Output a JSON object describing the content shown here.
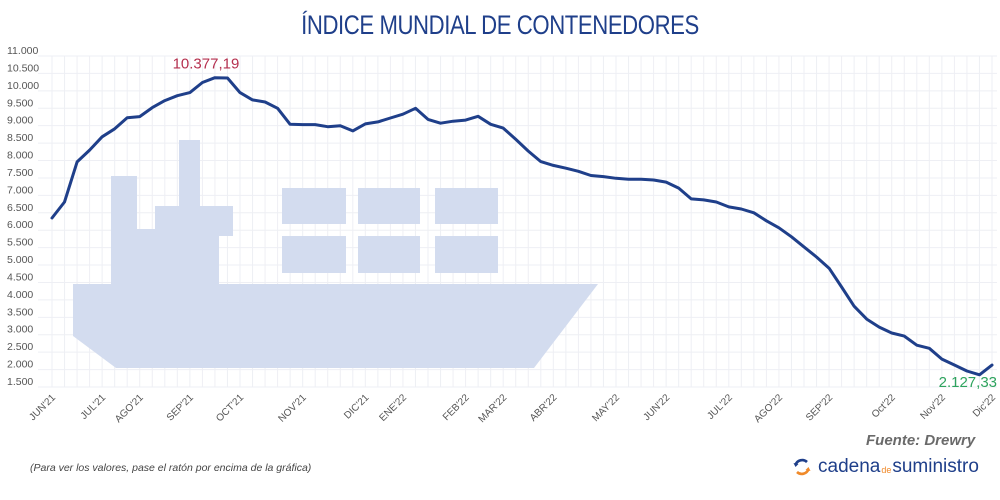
{
  "header": {
    "title": "ÍNDICE MUNDIAL DE CONTENEDORES"
  },
  "footer": {
    "source": "Fuente: Drewry",
    "note": "(Para ver los valores, pase el ratón por encima de la gráfica)",
    "logo": {
      "part1": "cadena",
      "part2": "de",
      "part3": "suministro",
      "icon": "refresh-arrows-icon"
    }
  },
  "colors": {
    "line": "#1f3f8a",
    "ship": "#d3dcef",
    "max_label": "#b5304f",
    "min_label": "#2ea35e",
    "grid": "#eeeff4"
  },
  "chart_data": {
    "type": "line",
    "title": "ÍNDICE MUNDIAL DE CONTENEDORES",
    "xlabel": "",
    "ylabel": "",
    "ylim": [
      1500,
      11000
    ],
    "yticks": [
      1500,
      2000,
      2500,
      3000,
      3500,
      4000,
      4500,
      5000,
      5500,
      6000,
      6500,
      7000,
      7500,
      8000,
      8500,
      9000,
      9500,
      10000,
      10500,
      11000
    ],
    "ytick_labels": [
      "1.500",
      "2.000",
      "2.500",
      "3.000",
      "3.500",
      "4.000",
      "4.500",
      "5.000",
      "5.500",
      "6.000",
      "6.500",
      "7.000",
      "7.500",
      "8.000",
      "8.500",
      "9.000",
      "9.500",
      "10.000",
      "10.500",
      "11.000"
    ],
    "grid": true,
    "xticks": [
      {
        "label": "JUN'21",
        "index": 0
      },
      {
        "label": "JUL'21",
        "index": 4
      },
      {
        "label": "AGO'21",
        "index": 7
      },
      {
        "label": "SEP'21",
        "index": 11
      },
      {
        "label": "OCT'21",
        "index": 15
      },
      {
        "label": "NOV'21",
        "index": 20
      },
      {
        "label": "DIC'21",
        "index": 25
      },
      {
        "label": "ENE'22",
        "index": 28
      },
      {
        "label": "FEB'22",
        "index": 33
      },
      {
        "label": "MAR'22",
        "index": 36
      },
      {
        "label": "ABR'22",
        "index": 40
      },
      {
        "label": "MAY'22",
        "index": 45
      },
      {
        "label": "JUN'22",
        "index": 49
      },
      {
        "label": "JUL'22",
        "index": 54
      },
      {
        "label": "AGO'22",
        "index": 58
      },
      {
        "label": "SEP'22",
        "index": 62
      },
      {
        "label": "Oct'22",
        "index": 67
      },
      {
        "label": "Nov'22",
        "index": 71
      },
      {
        "label": "Dic'22",
        "index": 75
      }
    ],
    "series": [
      {
        "name": "Índice Mundial de Contenedores",
        "values": [
          6350,
          6810,
          7960,
          8300,
          8680,
          8910,
          9230,
          9260,
          9520,
          9720,
          9860,
          9950,
          10240,
          10377.19,
          10370,
          9950,
          9740,
          9680,
          9500,
          9040,
          9030,
          9030,
          8970,
          9000,
          8850,
          9050,
          9110,
          9220,
          9330,
          9500,
          9180,
          9070,
          9130,
          9160,
          9270,
          9040,
          8930,
          8610,
          8270,
          7970,
          7860,
          7780,
          7690,
          7570,
          7540,
          7490,
          7460,
          7460,
          7440,
          7380,
          7210,
          6900,
          6870,
          6810,
          6670,
          6610,
          6500,
          6270,
          6070,
          5810,
          5520,
          5230,
          4910,
          4370,
          3820,
          3450,
          3220,
          3050,
          2960,
          2700,
          2610,
          2300,
          2130,
          1960,
          1850,
          2127.33
        ],
        "color": "#1f3f8a"
      }
    ],
    "annotations": [
      {
        "text": "10.377,19",
        "type": "max",
        "index": 13
      },
      {
        "text": "2.127,33",
        "type": "last",
        "index": 75
      }
    ],
    "legend": "none"
  }
}
